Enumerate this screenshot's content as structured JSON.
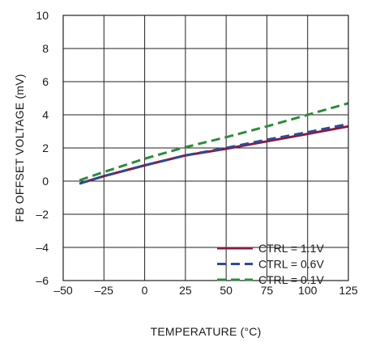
{
  "chart_data": {
    "type": "line",
    "title": "",
    "xlabel": "TEMPERATURE (°C)",
    "ylabel": "FB OFFSET VOLTAGE (mV)",
    "xlim": [
      -50,
      125
    ],
    "ylim": [
      -6,
      10
    ],
    "xticks": [
      -50,
      -25,
      0,
      25,
      50,
      75,
      100,
      125
    ],
    "yticks": [
      -6,
      -4,
      -2,
      0,
      2,
      4,
      6,
      8,
      10
    ],
    "xtick_labels": [
      "–50",
      "–25",
      "0",
      "25",
      "50",
      "75",
      "100",
      "125"
    ],
    "ytick_labels": [
      "–6",
      "–4",
      "–2",
      "0",
      "2",
      "4",
      "6",
      "8",
      "10"
    ],
    "grid": true,
    "legend_position": "bottom-right",
    "series": [
      {
        "name": "CTRL = 1.1V",
        "color": "#8b1a3a",
        "style": "solid",
        "x": [
          -40,
          -25,
          0,
          25,
          50,
          75,
          100,
          125
        ],
        "y": [
          -0.15,
          0.3,
          0.95,
          1.55,
          1.95,
          2.4,
          2.85,
          3.3
        ]
      },
      {
        "name": "CTRL = 0.6V",
        "color": "#2e4a9a",
        "style": "dashed",
        "x": [
          -40,
          -25,
          0,
          25,
          50,
          75,
          100,
          125
        ],
        "y": [
          -0.15,
          0.3,
          0.95,
          1.55,
          2.0,
          2.5,
          2.95,
          3.45
        ]
      },
      {
        "name": "CTRL = 0.1V",
        "color": "#2e8b3a",
        "style": "dashed",
        "x": [
          -40,
          -25,
          0,
          25,
          50,
          75,
          100,
          125
        ],
        "y": [
          0.05,
          0.55,
          1.35,
          2.05,
          2.65,
          3.3,
          4.0,
          4.7
        ]
      }
    ]
  }
}
